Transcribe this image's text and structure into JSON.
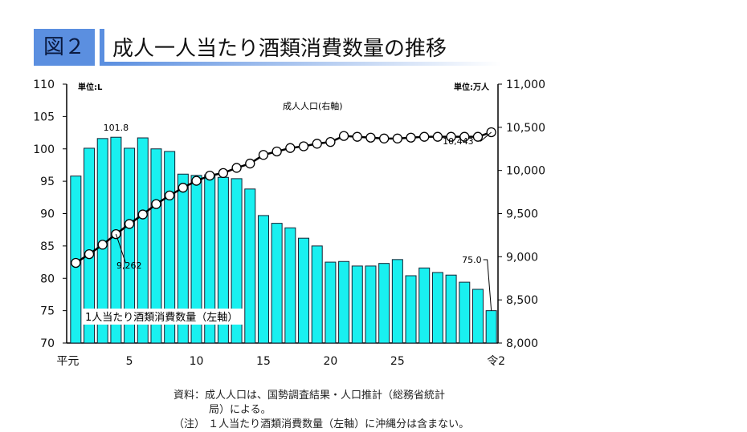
{
  "header": {
    "fig_label": "図２",
    "title": "成人一人当たり酒類消費数量の推移"
  },
  "notes": {
    "source1": "資料：成人人口は、国勢調査結果・人口推計（総務省統計",
    "source2": "局）による。",
    "note": "（注） １人当たり酒類消費数量（左軸）に沖縄分は含まない。"
  },
  "chart_data": {
    "type": "bar+line",
    "left_unit": "単位:L",
    "right_unit": "単位:万人",
    "left_ylim": [
      70,
      110
    ],
    "left_ticks": [
      "70",
      "75",
      "80",
      "85",
      "90",
      "95",
      "100",
      "105",
      "110"
    ],
    "right_ylim": [
      8000,
      11000
    ],
    "right_ticks": [
      "8,000",
      "8,500",
      "9,000",
      "9,500",
      "10,000",
      "10,500",
      "11,000"
    ],
    "x_tick_labels": [
      {
        "i": 0,
        "label": "平元"
      },
      {
        "i": 4,
        "label": "5"
      },
      {
        "i": 9,
        "label": "10"
      },
      {
        "i": 14,
        "label": "15"
      },
      {
        "i": 19,
        "label": "20"
      },
      {
        "i": 24,
        "label": "25"
      },
      {
        "i": 31,
        "label": "令2"
      }
    ],
    "series": [
      {
        "name": "1人当たり酒類消費数量（左軸）",
        "type": "bar",
        "color": "#19f0f0",
        "values": [
          95.8,
          100.1,
          101.6,
          101.8,
          100.1,
          101.7,
          100.0,
          99.6,
          96.1,
          95.9,
          96.0,
          95.6,
          95.4,
          93.8,
          89.7,
          88.5,
          87.8,
          86.2,
          85.0,
          82.5,
          82.6,
          81.9,
          81.9,
          82.3,
          82.9,
          80.4,
          81.6,
          80.9,
          80.5,
          79.4,
          78.3,
          75.0
        ]
      },
      {
        "name": "成人人口(右軸)",
        "type": "line",
        "values": [
          8929,
          9030,
          9140,
          9262,
          9380,
          9490,
          9610,
          9710,
          9800,
          9880,
          9940,
          9970,
          10030,
          10080,
          10180,
          10220,
          10260,
          10280,
          10310,
          10330,
          10400,
          10390,
          10380,
          10370,
          10370,
          10380,
          10390,
          10390,
          10390,
          10390,
          10390,
          10443
        ]
      }
    ],
    "annotations": {
      "bar_max": "101.8",
      "bar_last": "75.0",
      "line_h4": "9,262",
      "line_last": "10,443"
    }
  }
}
